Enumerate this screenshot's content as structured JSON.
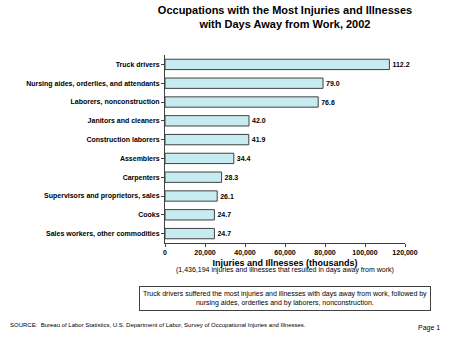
{
  "chart_data": {
    "type": "bar",
    "orientation": "horizontal",
    "title": "Occupations with the Most Injuries and Illnesses\nwith Days Away from Work, 2002",
    "xlabel": "Injuries and Illnesses (thousands)",
    "categories": [
      "Truck drivers",
      "Nursing aides, orderlies, and attendants",
      "Laborers, nonconstruction",
      "Janitors and cleaners",
      "Construction laborers",
      "Assemblers",
      "Carpenters",
      "Supervisors and proprietors, sales",
      "Cooks",
      "Sales workers, other commodities"
    ],
    "values": [
      112200,
      79000,
      76600,
      42000,
      41900,
      34400,
      28300,
      26100,
      24700,
      24700
    ],
    "value_labels": [
      "112.2",
      "79.0",
      "76.6",
      "42.0",
      "41.9",
      "34.4",
      "28.3",
      "26.1",
      "24.7",
      "24.7"
    ],
    "data_labels": true,
    "color": "#c6ecf1",
    "grid": false,
    "xlim": [
      0,
      120000
    ],
    "xticks": [
      0,
      {
        "value": 20000,
        "label": "20,000"
      },
      {
        "value": 40000,
        "label": "40,000"
      },
      {
        "value": 60000,
        "label": "60,000"
      },
      {
        "value": 80000,
        "label": "80,000"
      },
      {
        "value": 100000,
        "label": "100,000"
      },
      {
        "value": 120000,
        "label": "120,000"
      }
    ],
    "annotations": [
      "(1,436,194 injuries and illnesses that resulted in days away from work)",
      "Truck drivers suffered the most injuries and illnesses with days away from work, followed by\nnursing aides, orderlies and by laborers, nonconstruction.",
      "SOURCE:  Bureau of Labor Statistics, U.S. Department of Labor, Survey of Occupational Injuries and Illnesses.",
      "Page 1"
    ]
  }
}
